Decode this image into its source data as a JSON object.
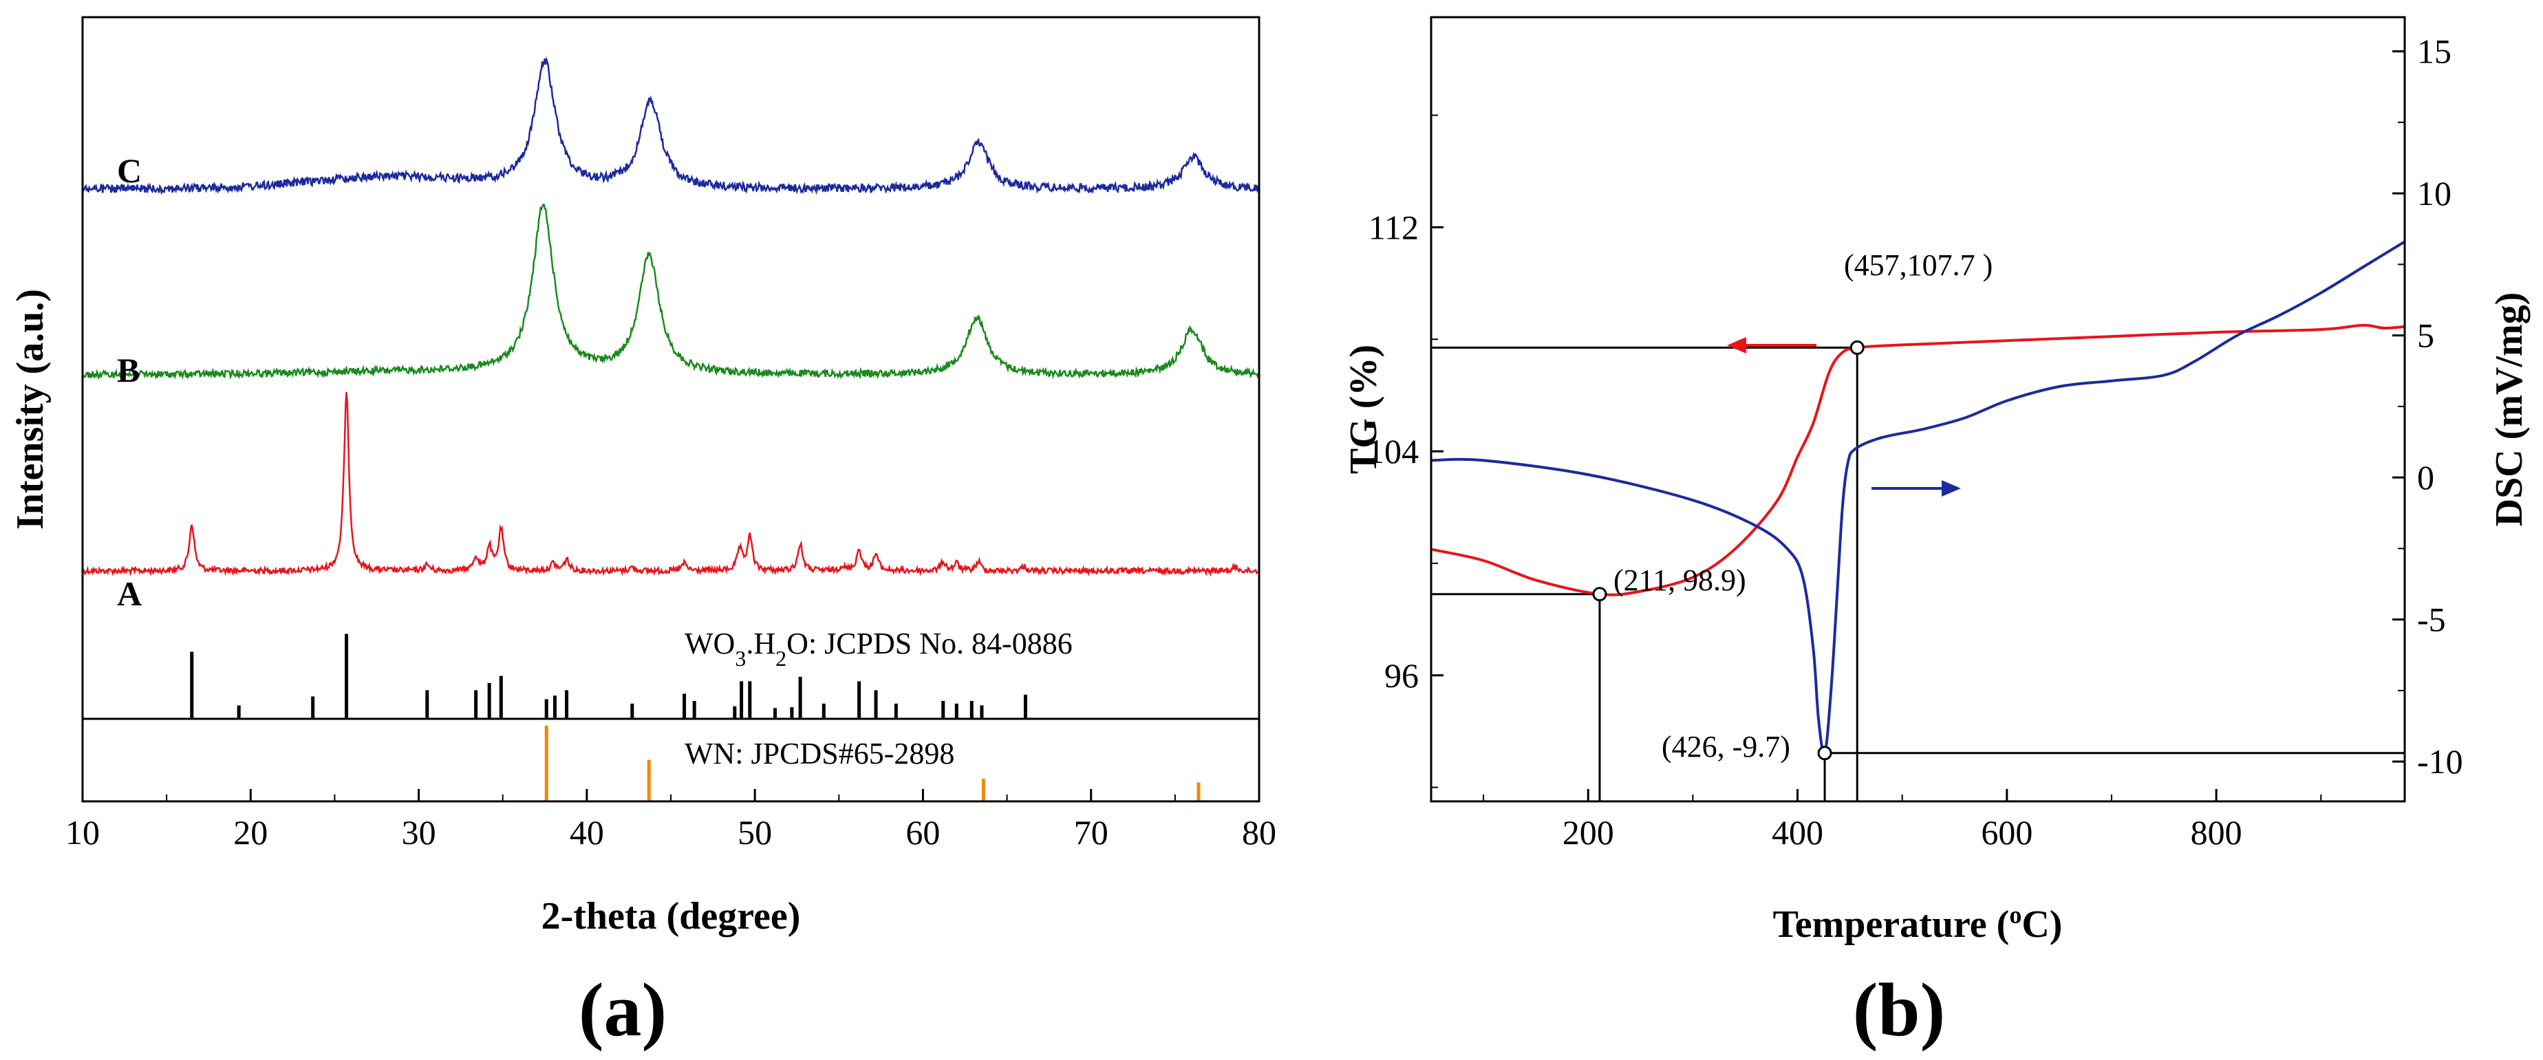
{
  "panel_labels": {
    "a": "(a)",
    "b": "(b)"
  },
  "chart_data": [
    {
      "type": "line",
      "panel": "(a)",
      "title": "",
      "xlabel": "2-theta (degree)",
      "ylabel": "Intensity (a.u.)",
      "xlim": [
        10,
        80
      ],
      "xticks": [
        10,
        20,
        30,
        40,
        50,
        60,
        70,
        80
      ],
      "series": [
        {
          "name": "A",
          "color": "#e8141c",
          "baseline": 0,
          "peaks": [
            [
              16.5,
              0.62
            ],
            [
              25.7,
              2.35
            ],
            [
              30.5,
              0.08
            ],
            [
              33.4,
              0.18
            ],
            [
              34.2,
              0.32
            ],
            [
              34.9,
              0.55
            ],
            [
              38.0,
              0.1
            ],
            [
              38.8,
              0.15
            ],
            [
              42.7,
              0.05
            ],
            [
              45.8,
              0.1
            ],
            [
              49.1,
              0.28
            ],
            [
              49.7,
              0.45
            ],
            [
              52.7,
              0.35
            ],
            [
              55.2,
              0.06
            ],
            [
              56.2,
              0.28
            ],
            [
              57.2,
              0.22
            ],
            [
              61.2,
              0.12
            ],
            [
              62.0,
              0.1
            ],
            [
              63.3,
              0.12
            ],
            [
              66.0,
              0.06
            ],
            [
              78.6,
              0.05
            ]
          ],
          "width": 0.18
        },
        {
          "name": "B",
          "color": "#1b8a1e",
          "baseline": 0.1,
          "peaks": [
            [
              37.4,
              2.2
            ],
            [
              43.7,
              1.55
            ],
            [
              63.2,
              0.75
            ],
            [
              76.0,
              0.6
            ]
          ],
          "width": 0.75
        },
        {
          "name": "C",
          "color": "#1d2a9e",
          "baseline": 0.15,
          "hump": [
            28.0,
            0.12
          ],
          "peaks": [
            [
              37.5,
              1.65
            ],
            [
              43.8,
              1.15
            ],
            [
              63.3,
              0.6
            ],
            [
              76.1,
              0.42
            ]
          ],
          "width": 0.75
        }
      ],
      "reference_patterns": [
        {
          "label": "WO3.H2O: JCPDS No. 84-0886",
          "color": "#000000",
          "lines": [
            [
              16.5,
              0.75
            ],
            [
              19.3,
              0.15
            ],
            [
              23.7,
              0.25
            ],
            [
              25.7,
              0.95
            ],
            [
              30.5,
              0.32
            ],
            [
              33.4,
              0.32
            ],
            [
              34.2,
              0.4
            ],
            [
              34.9,
              0.48
            ],
            [
              37.6,
              0.22
            ],
            [
              38.1,
              0.26
            ],
            [
              38.8,
              0.32
            ],
            [
              42.7,
              0.17
            ],
            [
              45.8,
              0.28
            ],
            [
              46.4,
              0.2
            ],
            [
              48.8,
              0.14
            ],
            [
              49.2,
              0.42
            ],
            [
              49.7,
              0.42
            ],
            [
              51.2,
              0.12
            ],
            [
              52.2,
              0.13
            ],
            [
              52.7,
              0.47
            ],
            [
              54.1,
              0.17
            ],
            [
              56.2,
              0.42
            ],
            [
              57.2,
              0.32
            ],
            [
              58.4,
              0.17
            ],
            [
              61.2,
              0.2
            ],
            [
              62.0,
              0.17
            ],
            [
              62.9,
              0.2
            ],
            [
              63.5,
              0.15
            ],
            [
              66.1,
              0.27
            ]
          ]
        },
        {
          "label": "WN: JPCDS#65-2898",
          "color": "#f08a00",
          "lines": [
            [
              37.6,
              1.0
            ],
            [
              43.7,
              0.55
            ],
            [
              63.6,
              0.3
            ],
            [
              76.4,
              0.25
            ]
          ]
        }
      ]
    },
    {
      "type": "line",
      "panel": "(b)",
      "title": "",
      "xlabel": "Temperature (oC)",
      "ylabel_left": "TG (%)",
      "ylabel_right": "DSC (mV/mg)",
      "xlim": [
        50,
        980
      ],
      "xticks": [
        200,
        400,
        600,
        800
      ],
      "ylim_left": [
        91.5,
        119.5
      ],
      "yticks_left": [
        96,
        104,
        112
      ],
      "ylim_right": [
        -11.4,
        16.2
      ],
      "yticks_right": [
        15,
        10,
        5,
        0,
        -5,
        -10
      ],
      "series": [
        {
          "name": "TG",
          "axis": "left",
          "color": "#e8141c",
          "points": [
            [
              50,
              100.5
            ],
            [
              100,
              100.1
            ],
            [
              150,
              99.4
            ],
            [
              211,
              98.9
            ],
            [
              250,
              99.0
            ],
            [
              300,
              99.5
            ],
            [
              340,
              100.5
            ],
            [
              380,
              102.2
            ],
            [
              400,
              103.8
            ],
            [
              415,
              105.0
            ],
            [
              430,
              106.8
            ],
            [
              442,
              107.5
            ],
            [
              457,
              107.7
            ],
            [
              500,
              107.8
            ],
            [
              600,
              107.95
            ],
            [
              700,
              108.1
            ],
            [
              800,
              108.25
            ],
            [
              900,
              108.35
            ],
            [
              940,
              108.5
            ],
            [
              960,
              108.4
            ],
            [
              980,
              108.45
            ]
          ]
        },
        {
          "name": "DSC",
          "axis": "right",
          "color": "#1d2a9e",
          "points": [
            [
              50,
              0.6
            ],
            [
              100,
              0.6
            ],
            [
              200,
              0.1
            ],
            [
              300,
              -0.8
            ],
            [
              360,
              -1.7
            ],
            [
              390,
              -2.5
            ],
            [
              405,
              -3.5
            ],
            [
              415,
              -6.0
            ],
            [
              420,
              -8.5
            ],
            [
              426,
              -9.7
            ],
            [
              432,
              -7.5
            ],
            [
              438,
              -4.0
            ],
            [
              443,
              -1.0
            ],
            [
              448,
              0.5
            ],
            [
              455,
              1.0
            ],
            [
              480,
              1.4
            ],
            [
              520,
              1.7
            ],
            [
              560,
              2.1
            ],
            [
              600,
              2.7
            ],
            [
              650,
              3.2
            ],
            [
              700,
              3.4
            ],
            [
              750,
              3.6
            ],
            [
              780,
              4.1
            ],
            [
              820,
              5.0
            ],
            [
              860,
              5.7
            ],
            [
              900,
              6.5
            ],
            [
              940,
              7.4
            ],
            [
              980,
              8.3
            ]
          ]
        }
      ],
      "annotations": [
        {
          "label": "(457,107.7 )",
          "x": 457,
          "y": 107.7,
          "axis": "left"
        },
        {
          "label": "(211, 98.9)",
          "x": 211,
          "y": 98.9,
          "axis": "left"
        },
        {
          "label": "(426, -9.7)",
          "x": 426,
          "y": -9.7,
          "axis": "right"
        }
      ]
    }
  ]
}
